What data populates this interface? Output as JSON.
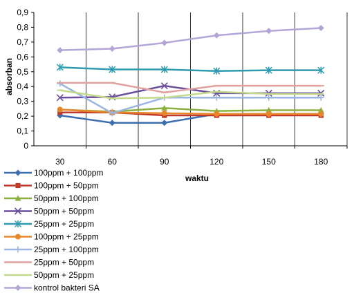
{
  "chart_data": {
    "type": "line",
    "xlabel": "waktu",
    "ylabel": "absorban",
    "x": [
      "30",
      "60",
      "90",
      "120",
      "150",
      "180"
    ],
    "ylim": [
      0,
      0.9
    ],
    "yticks": [
      "0",
      "0,1",
      "0,2",
      "0,3",
      "0,4",
      "0,5",
      "0,6",
      "0,7",
      "0,8",
      "0,9"
    ],
    "grid": "vertical",
    "legend_position": "bottom-left",
    "series": [
      {
        "name": "100ppm + 100ppm",
        "color": "#3d6eb0",
        "marker": "diamond",
        "values": [
          0.205,
          0.155,
          0.155,
          0.215,
          0.215,
          0.215
        ]
      },
      {
        "name": "100ppm + 50ppm",
        "color": "#c0392b",
        "marker": "square",
        "values": [
          0.225,
          0.225,
          0.205,
          0.205,
          0.205,
          0.205
        ]
      },
      {
        "name": "50ppm + 100ppm",
        "color": "#8bb040",
        "marker": "triangle",
        "values": [
          0.245,
          0.23,
          0.255,
          0.235,
          0.24,
          0.24
        ]
      },
      {
        "name": "50ppm + 50ppm",
        "color": "#6a4f9a",
        "marker": "x",
        "values": [
          0.325,
          0.33,
          0.405,
          0.355,
          0.355,
          0.355
        ]
      },
      {
        "name": "25ppm + 25ppm",
        "color": "#2e9bb0",
        "marker": "star",
        "values": [
          0.53,
          0.515,
          0.515,
          0.505,
          0.51,
          0.51
        ]
      },
      {
        "name": "100ppm + 25ppm",
        "color": "#e8872a",
        "marker": "circle",
        "values": [
          0.245,
          0.225,
          0.22,
          0.215,
          0.215,
          0.215
        ]
      },
      {
        "name": "25ppm + 100ppm",
        "color": "#9ab5e0",
        "marker": "plus",
        "values": [
          0.42,
          0.22,
          0.325,
          0.325,
          0.325,
          0.325
        ]
      },
      {
        "name": "25ppm + 50ppm",
        "color": "#e0a09e",
        "marker": "dash",
        "values": [
          0.425,
          0.425,
          0.36,
          0.405,
          0.405,
          0.405
        ]
      },
      {
        "name": "50ppm + 25ppm",
        "color": "#c3d98b",
        "marker": "dash",
        "values": [
          0.375,
          0.32,
          0.325,
          0.365,
          0.35,
          0.35
        ]
      },
      {
        "name": "kontrol bakteri SA",
        "color": "#b3a6d6",
        "marker": "diamond",
        "values": [
          0.645,
          0.655,
          0.695,
          0.745,
          0.775,
          0.795
        ]
      }
    ]
  }
}
